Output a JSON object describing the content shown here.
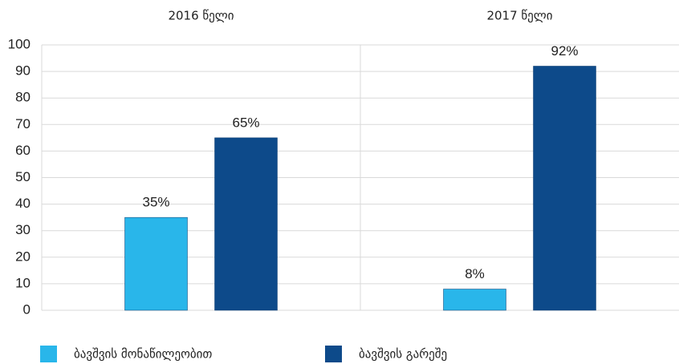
{
  "chart_data": {
    "type": "bar",
    "categories": [
      "2016 წელი",
      "2017 წელი"
    ],
    "series": [
      {
        "name": "ბავშვის მონაწილეობით",
        "color": "#29b6ea",
        "values": [
          35,
          8
        ],
        "value_labels": [
          "35%",
          "8%"
        ]
      },
      {
        "name": "ბავშვის გარეშე",
        "color": "#0d4a8a",
        "values": [
          65,
          92
        ],
        "value_labels": [
          "65%",
          "92%"
        ]
      }
    ],
    "ylim": [
      0,
      100
    ],
    "yticks": [
      0,
      10,
      20,
      30,
      40,
      50,
      60,
      70,
      80,
      90,
      100
    ],
    "grid": true,
    "legend": "bottom"
  }
}
